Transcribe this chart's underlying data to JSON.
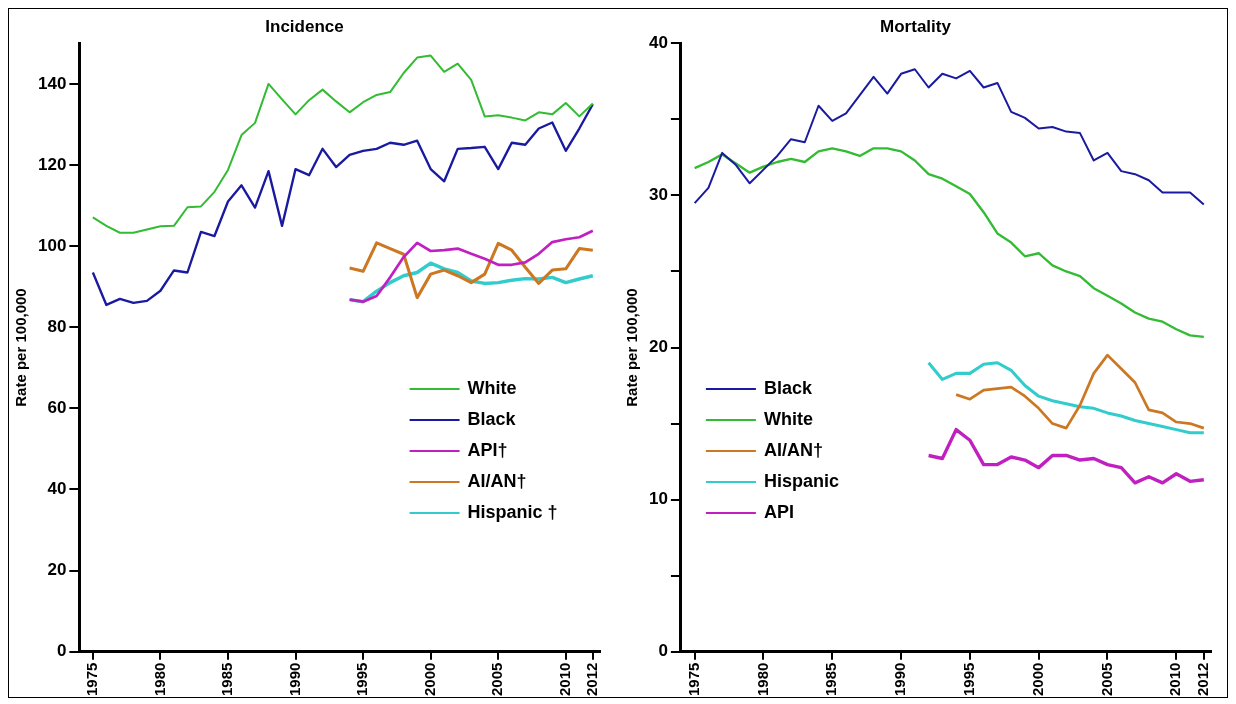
{
  "chart_data": [
    {
      "type": "line",
      "title": "Incidence",
      "ylabel": "Rate per 100,000",
      "xlim": [
        1974,
        2012.5
      ],
      "xticks": [
        1975,
        1980,
        1985,
        1990,
        1995,
        2000,
        2005,
        2010,
        2012
      ],
      "ylim": [
        0,
        150
      ],
      "yticks": [
        0,
        20,
        40,
        60,
        80,
        100,
        120,
        140
      ],
      "grid": false,
      "legend": "right",
      "marker": "none",
      "line_style": "solid",
      "x": [
        1975,
        1976,
        1977,
        1978,
        1979,
        1980,
        1981,
        1982,
        1983,
        1984,
        1985,
        1986,
        1987,
        1988,
        1989,
        1990,
        1991,
        1992,
        1993,
        1994,
        1995,
        1996,
        1997,
        1998,
        1999,
        2000,
        2001,
        2002,
        2003,
        2004,
        2005,
        2006,
        2007,
        2008,
        2009,
        2010,
        2011,
        2012
      ],
      "series": [
        {
          "name": "White",
          "color": "#33bb33",
          "values": [
            107.1,
            105,
            103.3,
            103.3,
            104.1,
            104.9,
            105,
            109.6,
            109.8,
            113.4,
            118.8,
            127.4,
            130.4,
            140,
            136.2,
            132.5,
            136,
            138.6,
            135.7,
            133,
            135.5,
            137.3,
            138,
            142.7,
            146.5,
            147,
            143,
            145,
            141,
            132,
            132.3,
            131.7,
            131,
            133,
            132.5,
            135.3,
            132,
            135.2
          ]
        },
        {
          "name": "Black",
          "color": "#1a1aa0",
          "values": [
            93.5,
            85.5,
            87,
            86,
            86.5,
            89,
            94,
            93.5,
            103.5,
            102.5,
            111,
            115,
            109.5,
            118.5,
            105,
            119,
            117.5,
            124,
            119.5,
            122.5,
            123.5,
            124,
            125.5,
            125,
            126,
            119,
            116,
            124,
            124.2,
            124.5,
            119,
            125.5,
            125,
            129,
            130.5,
            123.5,
            129,
            135
          ]
        },
        {
          "name": "API†",
          "color": "#c020c0",
          "x": [
            1994,
            1995,
            1996,
            1997,
            1998,
            1999,
            2000,
            2001,
            2002,
            2003,
            2004,
            2005,
            2006,
            2007,
            2008,
            2009,
            2010,
            2011,
            2012
          ],
          "values": [
            86.8,
            86.3,
            87.7,
            92.3,
            97.3,
            100.8,
            98.8,
            99,
            99.4,
            98.1,
            96.9,
            95.4,
            95.4,
            96,
            98.1,
            101,
            101.7,
            102.2,
            103.8
          ]
        },
        {
          "name": "AI/AN†",
          "color": "#cc7722",
          "x": [
            1994,
            1995,
            1996,
            1997,
            1998,
            1999,
            2000,
            2001,
            2002,
            2003,
            2004,
            2005,
            2006,
            2007,
            2008,
            2009,
            2010,
            2011,
            2012
          ],
          "values": [
            94.6,
            93.8,
            100.8,
            99.4,
            98,
            87.3,
            93.1,
            94.1,
            92.7,
            91,
            93.1,
            100.7,
            99,
            94.8,
            90.8,
            94.1,
            94.4,
            99.4,
            99
          ]
        },
        {
          "name": "Hispanic †",
          "color": "#33cccc",
          "x": [
            1994,
            1995,
            1996,
            1997,
            1998,
            1999,
            2000,
            2001,
            2002,
            2003,
            2004,
            2005,
            2006,
            2007,
            2008,
            2009,
            2010,
            2011,
            2012
          ],
          "values": [
            86.8,
            86.3,
            88.9,
            91,
            92.7,
            93.5,
            95.8,
            94.4,
            93.5,
            91.4,
            90.8,
            91,
            91.6,
            92,
            91.9,
            92.3,
            91,
            91.9,
            92.7
          ]
        }
      ]
    },
    {
      "type": "line",
      "title": "Mortality",
      "ylabel": "Rate per 100,000",
      "xlim": [
        1974,
        2012.5
      ],
      "xticks": [
        1975,
        1980,
        1985,
        1990,
        1995,
        2000,
        2005,
        2010,
        2012
      ],
      "ylim": [
        0,
        40
      ],
      "yticks": [
        0,
        {
          "value": 5,
          "label": null
        },
        10,
        {
          "value": 15,
          "label": null
        },
        20,
        {
          "value": 25,
          "label": null
        },
        30,
        {
          "value": 35,
          "label": null
        },
        40
      ],
      "grid": false,
      "legend": "left",
      "marker": "none",
      "line_style": "solid",
      "x": [
        1975,
        1976,
        1977,
        1978,
        1979,
        1980,
        1981,
        1982,
        1983,
        1984,
        1985,
        1986,
        1987,
        1988,
        1989,
        1990,
        1991,
        1992,
        1993,
        1994,
        1995,
        1996,
        1997,
        1998,
        1999,
        2000,
        2001,
        2002,
        2003,
        2004,
        2005,
        2006,
        2007,
        2008,
        2009,
        2010,
        2011,
        2012
      ],
      "series": [
        {
          "name": "Black",
          "color": "#1a1aa0",
          "values": [
            29.5,
            30.5,
            32.8,
            32,
            30.8,
            31.7,
            32.6,
            33.7,
            33.5,
            35.9,
            34.9,
            35.4,
            36.6,
            37.8,
            36.7,
            38,
            38.3,
            37.1,
            38,
            37.7,
            38.2,
            37.1,
            37.4,
            35.5,
            35.1,
            34.4,
            34.5,
            34.2,
            34.1,
            32.3,
            32.8,
            31.6,
            31.4,
            31,
            30.2,
            30.2,
            30.2,
            29.4
          ]
        },
        {
          "name": "White",
          "color": "#33bb33",
          "values": [
            31.8,
            32.2,
            32.7,
            32.1,
            31.5,
            31.9,
            32.2,
            32.4,
            32.2,
            32.9,
            33.1,
            32.9,
            32.6,
            33.1,
            33.1,
            32.9,
            32.3,
            31.4,
            31.1,
            30.6,
            30.1,
            28.9,
            27.5,
            26.9,
            26,
            26.2,
            25.4,
            25,
            24.7,
            23.9,
            23.4,
            22.9,
            22.3,
            21.9,
            21.7,
            21.2,
            20.8,
            20.7
          ]
        },
        {
          "name": "AI/AN†",
          "color": "#cc7722",
          "x": [
            1994,
            1995,
            1996,
            1997,
            1998,
            1999,
            2000,
            2001,
            2002,
            2003,
            2004,
            2005,
            2006,
            2007,
            2008,
            2009,
            2010,
            2011,
            2012
          ],
          "values": [
            16.9,
            16.6,
            17.2,
            17.3,
            17.4,
            16.8,
            16,
            15,
            14.7,
            16.2,
            18.3,
            19.5,
            18.6,
            17.7,
            15.9,
            15.7,
            15.1,
            15,
            14.7
          ]
        },
        {
          "name": "Hispanic",
          "color": "#33cccc",
          "x": [
            1992,
            1993,
            1994,
            1995,
            1996,
            1997,
            1998,
            1999,
            2000,
            2001,
            2002,
            2003,
            2004,
            2005,
            2006,
            2007,
            2008,
            2009,
            2010,
            2011,
            2012
          ],
          "values": [
            19,
            17.9,
            18.3,
            18.3,
            18.9,
            19,
            18.5,
            17.5,
            16.8,
            16.5,
            16.3,
            16.1,
            16,
            15.7,
            15.5,
            15.2,
            15,
            14.8,
            14.6,
            14.4,
            14.4
          ]
        },
        {
          "name": "API",
          "color": "#c020c0",
          "x": [
            1992,
            1993,
            1994,
            1995,
            1996,
            1997,
            1998,
            1999,
            2000,
            2001,
            2002,
            2003,
            2004,
            2005,
            2006,
            2007,
            2008,
            2009,
            2010,
            2011,
            2012
          ],
          "values": [
            12.9,
            12.7,
            14.6,
            13.9,
            12.3,
            12.3,
            12.8,
            12.6,
            12.1,
            12.9,
            12.9,
            12.6,
            12.7,
            12.3,
            12.1,
            11.1,
            11.5,
            11.1,
            11.7,
            11.2,
            11.3
          ]
        }
      ]
    }
  ]
}
